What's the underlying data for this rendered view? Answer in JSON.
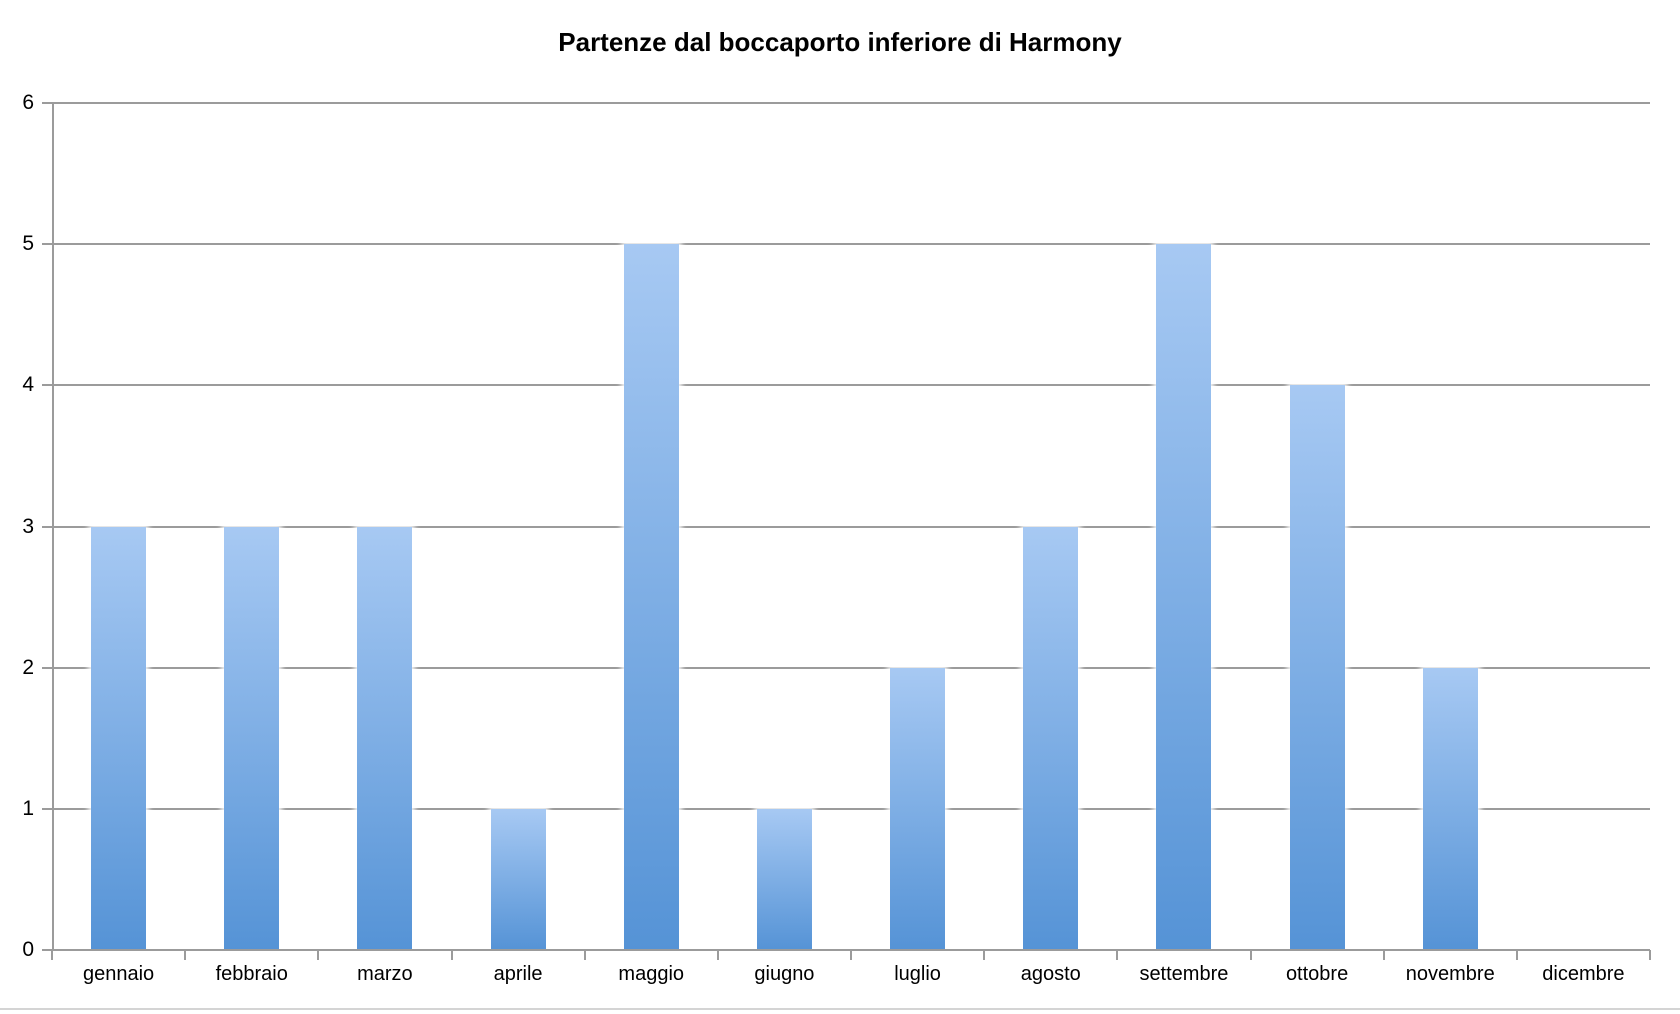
{
  "title": "Partenze dal boccaporto inferiore di Harmony",
  "chart_data": {
    "type": "bar",
    "title": "Partenze dal boccaporto inferiore di Harmony",
    "categories": [
      "gennaio",
      "febbraio",
      "marzo",
      "aprile",
      "maggio",
      "giugno",
      "luglio",
      "agosto",
      "settembre",
      "ottobre",
      "novembre",
      "dicembre"
    ],
    "values": [
      3,
      3,
      3,
      1,
      5,
      1,
      2,
      3,
      5,
      4,
      2,
      0
    ],
    "xlabel": "",
    "ylabel": "",
    "ylim": [
      0,
      6
    ],
    "y_tick_step": 1,
    "y_tick_labels": [
      "0",
      "1",
      "2",
      "3",
      "4",
      "5",
      "6"
    ],
    "grid": "horizontal",
    "legend": "none",
    "colors": {
      "bar_gradient_top": "#a7c9f3",
      "bar_gradient_bottom": "#5593d6",
      "gridline": "#9b9b9b",
      "axis": "#9b9b9b",
      "text": "#000000",
      "bottom_separator": "#d4d4d4",
      "background": "#ffffff"
    }
  }
}
